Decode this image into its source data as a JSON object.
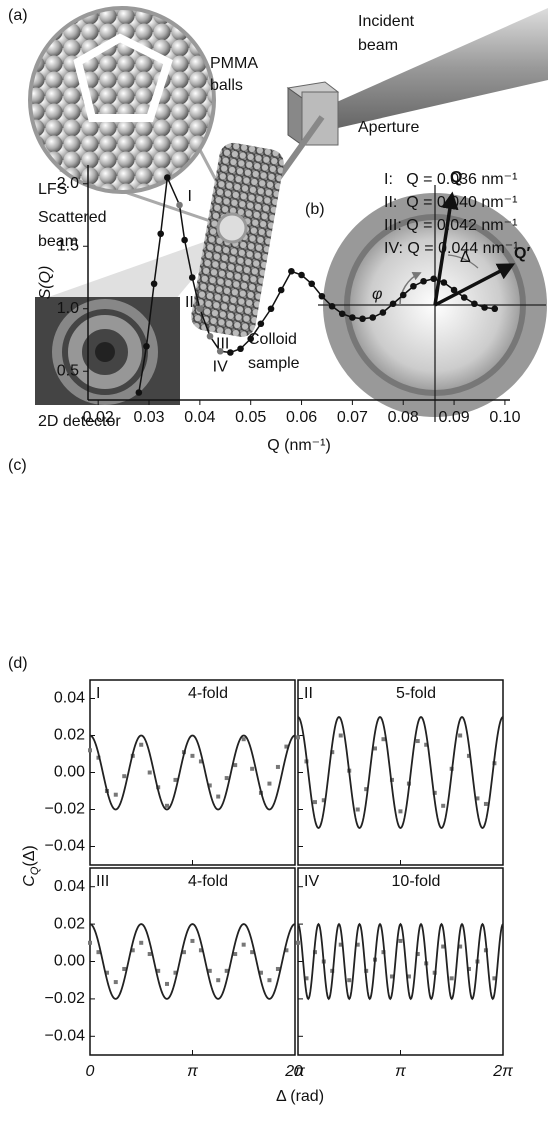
{
  "diagram": {
    "panel_a": "(a)",
    "pmma": [
      "PMMA",
      "balls"
    ],
    "incident": [
      "Incident",
      "beam"
    ],
    "aperture": "Aperture",
    "lfs": "LFS",
    "scattered": [
      "Scattered",
      "beam"
    ],
    "colloid": [
      "Colloid",
      "sample"
    ],
    "detector": "2D detector",
    "panel_b": "(b)",
    "q": "Q",
    "q_prime": "Q′",
    "phi": "φ",
    "delta": "Δ",
    "panel_c": "(c)"
  },
  "panel_d": {
    "label": "(d)",
    "ylabel": [
      "C",
      "Q",
      "(Δ)"
    ],
    "xlabel": "Δ (rad)"
  },
  "chart_data": [
    {
      "type": "line",
      "ylabel": "S(Q)",
      "xlabel": "Q (nm⁻¹)",
      "color": "#111",
      "x": [
        0.028,
        0.0295,
        0.031,
        0.0323,
        0.0336,
        0.036,
        0.037,
        0.0385,
        0.04,
        0.042,
        0.044,
        0.046,
        0.048,
        0.05,
        0.052,
        0.054,
        0.056,
        0.058,
        0.06,
        0.062,
        0.064,
        0.066,
        0.068,
        0.07,
        0.072,
        0.074,
        0.076,
        0.078,
        0.08,
        0.082,
        0.084,
        0.086,
        0.088,
        0.09,
        0.092,
        0.094,
        0.096,
        0.098
      ],
      "values": [
        0.33,
        0.7,
        1.2,
        1.6,
        2.05,
        1.83,
        1.55,
        1.25,
        1.0,
        0.78,
        0.66,
        0.65,
        0.68,
        0.76,
        0.88,
        1.0,
        1.15,
        1.3,
        1.27,
        1.2,
        1.1,
        1.02,
        0.96,
        0.93,
        0.92,
        0.93,
        0.97,
        1.04,
        1.11,
        1.18,
        1.22,
        1.24,
        1.21,
        1.15,
        1.09,
        1.04,
        1.01,
        1.0
      ],
      "marker_colors": [
        "#111",
        "#111",
        "#111",
        "#111",
        "#111",
        "#777",
        "#111",
        "#111",
        "#777",
        "#777",
        "#777",
        "#111",
        "#111",
        "#111",
        "#111",
        "#111",
        "#111",
        "#111",
        "#111",
        "#111",
        "#111",
        "#111",
        "#111",
        "#111",
        "#111",
        "#111",
        "#111",
        "#111",
        "#111",
        "#111",
        "#111",
        "#111",
        "#111",
        "#111",
        "#111",
        "#111",
        "#111",
        "#111"
      ],
      "point_labels": [
        null,
        null,
        null,
        null,
        null,
        "I",
        null,
        null,
        "II",
        "III",
        "IV",
        null,
        null,
        null,
        null,
        null,
        null,
        null,
        null,
        null,
        null,
        null,
        null,
        null,
        null,
        null,
        null,
        null,
        null,
        null,
        null,
        null,
        null,
        null,
        null,
        null,
        null,
        null
      ],
      "annotations": [
        "I:   Q = 0.036 nm⁻¹",
        "II:  Q = 0.040 nm⁻¹",
        "III: Q = 0.042 nm⁻¹",
        "IV: Q = 0.044 nm⁻¹"
      ],
      "xlim": [
        0.018,
        0.101
      ],
      "xticks": [
        0.02,
        0.03,
        0.04,
        0.05,
        0.06,
        0.07,
        0.08,
        0.09,
        {
          "value": 0.1,
          "label": "0.10"
        }
      ],
      "ylim": [
        0.27,
        2.15
      ],
      "yticks": [
        0.5,
        {
          "value": 1,
          "label": "1.0"
        },
        1.5,
        {
          "value": 2,
          "label": "2.0"
        }
      ]
    },
    {
      "type": "scatter",
      "label": "I",
      "fold_label": "4-fold",
      "color": "#777",
      "fit": {
        "amplitude": 0.02,
        "fold": 4,
        "color": "#222"
      },
      "x": [
        0,
        0.26,
        0.52,
        0.79,
        1.05,
        1.31,
        1.57,
        1.83,
        2.09,
        2.36,
        2.62,
        2.88,
        3.14,
        3.4,
        3.67,
        3.93,
        4.19,
        4.45,
        4.71,
        4.97,
        5.24,
        5.5,
        5.76,
        6.02
      ],
      "values": [
        0.012,
        0.008,
        -0.01,
        -0.012,
        -0.002,
        0.009,
        0.015,
        0.0,
        -0.008,
        -0.018,
        -0.004,
        0.011,
        0.009,
        0.006,
        -0.007,
        -0.013,
        -0.003,
        0.004,
        0.018,
        0.002,
        -0.011,
        -0.006,
        0.003,
        0.014
      ],
      "xlim": [
        0,
        6.2832
      ],
      "xticks": [
        0,
        {
          "value": 3.1416,
          "label": "π"
        },
        {
          "value": 6.2832,
          "label": "2π"
        }
      ],
      "ylim": [
        -0.05,
        0.05
      ],
      "yticks": [
        {
          "value": -0.04,
          "label": "−0.04"
        },
        {
          "value": -0.02,
          "label": "−0.02"
        },
        {
          "value": 0,
          "label": "0.00"
        },
        0.02,
        0.04
      ]
    },
    {
      "type": "scatter",
      "label": "II",
      "fold_label": "5-fold",
      "color": "#777",
      "fit": {
        "amplitude": 0.03,
        "fold": 5,
        "color": "#222"
      },
      "x": [
        0,
        0.26,
        0.52,
        0.79,
        1.05,
        1.31,
        1.57,
        1.83,
        2.09,
        2.36,
        2.62,
        2.88,
        3.14,
        3.4,
        3.67,
        3.93,
        4.19,
        4.45,
        4.71,
        4.97,
        5.24,
        5.5,
        5.76,
        6.02
      ],
      "values": [
        0.019,
        0.006,
        -0.016,
        -0.015,
        0.011,
        0.02,
        0.001,
        -0.02,
        -0.009,
        0.013,
        0.018,
        -0.004,
        -0.021,
        -0.006,
        0.017,
        0.015,
        -0.011,
        -0.018,
        0.002,
        0.02,
        0.009,
        -0.014,
        -0.017,
        0.005
      ],
      "xlim": [
        0,
        6.2832
      ],
      "xticks": [
        0,
        {
          "value": 3.1416,
          "label": "π"
        },
        {
          "value": 6.2832,
          "label": "2π"
        }
      ],
      "ylim": [
        -0.05,
        0.05
      ],
      "yticks": [
        {
          "value": -0.04,
          "label": "−0.04"
        },
        {
          "value": -0.02,
          "label": "−0.02"
        },
        {
          "value": 0,
          "label": "0.00"
        },
        0.02,
        0.04
      ]
    },
    {
      "type": "scatter",
      "label": "III",
      "fold_label": "4-fold",
      "color": "#777",
      "fit": {
        "amplitude": 0.02,
        "fold": 4,
        "color": "#222"
      },
      "x": [
        0,
        0.26,
        0.52,
        0.79,
        1.05,
        1.31,
        1.57,
        1.83,
        2.09,
        2.36,
        2.62,
        2.88,
        3.14,
        3.4,
        3.67,
        3.93,
        4.19,
        4.45,
        4.71,
        4.97,
        5.24,
        5.5,
        5.76,
        6.02
      ],
      "values": [
        0.01,
        0.005,
        -0.006,
        -0.011,
        -0.004,
        0.006,
        0.01,
        0.004,
        -0.005,
        -0.012,
        -0.006,
        0.005,
        0.011,
        0.006,
        -0.005,
        -0.01,
        -0.005,
        0.004,
        0.009,
        0.005,
        -0.006,
        -0.01,
        -0.004,
        0.006
      ],
      "xlim": [
        0,
        6.2832
      ],
      "xticks": [
        0,
        {
          "value": 3.1416,
          "label": "π"
        },
        {
          "value": 6.2832,
          "label": "2π"
        }
      ],
      "ylim": [
        -0.05,
        0.05
      ],
      "yticks": [
        {
          "value": -0.04,
          "label": "−0.04"
        },
        {
          "value": -0.02,
          "label": "−0.02"
        },
        {
          "value": 0,
          "label": "0.00"
        },
        0.02,
        0.04
      ]
    },
    {
      "type": "scatter",
      "label": "IV",
      "fold_label": "10-fold",
      "color": "#777",
      "fit": {
        "amplitude": 0.02,
        "fold": 10,
        "color": "#222"
      },
      "x": [
        0,
        0.26,
        0.52,
        0.79,
        1.05,
        1.31,
        1.57,
        1.83,
        2.09,
        2.36,
        2.62,
        2.88,
        3.14,
        3.4,
        3.67,
        3.93,
        4.19,
        4.45,
        4.71,
        4.97,
        5.24,
        5.5,
        5.76,
        6.02
      ],
      "values": [
        0.01,
        -0.009,
        0.005,
        0.0,
        -0.005,
        0.009,
        -0.01,
        0.009,
        -0.005,
        0.001,
        0.005,
        -0.008,
        0.011,
        -0.008,
        0.004,
        -0.001,
        -0.006,
        0.008,
        -0.009,
        0.008,
        -0.004,
        0.0,
        0.006,
        -0.009
      ],
      "xlim": [
        0,
        6.2832
      ],
      "xticks": [
        0,
        {
          "value": 3.1416,
          "label": "π"
        },
        {
          "value": 6.2832,
          "label": "2π"
        }
      ],
      "ylim": [
        -0.05,
        0.05
      ],
      "yticks": [
        {
          "value": -0.04,
          "label": "−0.04"
        },
        {
          "value": -0.02,
          "label": "−0.02"
        },
        {
          "value": 0,
          "label": "0.00"
        },
        0.02,
        0.04
      ]
    }
  ]
}
